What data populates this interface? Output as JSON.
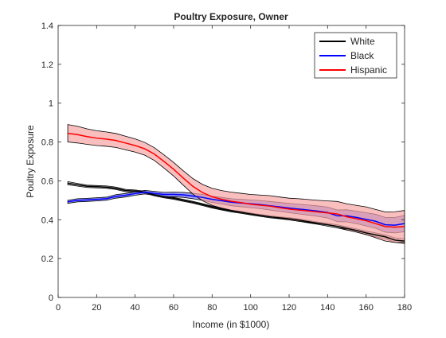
{
  "chart_data": {
    "type": "line",
    "title": "Poultry Exposure, Owner",
    "xlabel": "Income (in $1000)",
    "ylabel": "Poultry Exposure",
    "xlim": [
      0,
      180
    ],
    "ylim": [
      0,
      1.4
    ],
    "xticks": [
      "0",
      "20",
      "40",
      "60",
      "80",
      "100",
      "120",
      "140",
      "160",
      "180"
    ],
    "yticks": [
      "0",
      "0.2",
      "0.4",
      "0.6",
      "0.8",
      "1",
      "1.2",
      "1.4"
    ],
    "grid": false,
    "legend_position": "top-right",
    "series": [
      {
        "name": "White",
        "color": "#000000",
        "band_color": "#bdbdbd",
        "x": [
          5,
          10,
          15,
          20,
          25,
          30,
          35,
          40,
          45,
          50,
          55,
          60,
          65,
          70,
          75,
          80,
          85,
          90,
          95,
          100,
          105,
          110,
          115,
          120,
          125,
          130,
          135,
          140,
          145,
          150,
          155,
          160,
          165,
          170,
          175,
          180
        ],
        "y": [
          0.588,
          0.58,
          0.572,
          0.57,
          0.568,
          0.562,
          0.55,
          0.548,
          0.542,
          0.528,
          0.518,
          0.51,
          0.5,
          0.49,
          0.478,
          0.465,
          0.455,
          0.445,
          0.438,
          0.43,
          0.422,
          0.415,
          0.41,
          0.405,
          0.398,
          0.39,
          0.382,
          0.374,
          0.366,
          0.355,
          0.345,
          0.332,
          0.322,
          0.312,
          0.295,
          0.29
        ],
        "lower": [
          0.58,
          0.573,
          0.566,
          0.564,
          0.562,
          0.556,
          0.544,
          0.543,
          0.537,
          0.523,
          0.513,
          0.505,
          0.495,
          0.485,
          0.473,
          0.46,
          0.45,
          0.44,
          0.433,
          0.425,
          0.417,
          0.41,
          0.405,
          0.399,
          0.392,
          0.384,
          0.376,
          0.367,
          0.358,
          0.347,
          0.337,
          0.323,
          0.312,
          0.302,
          0.283,
          0.278
        ],
        "upper": [
          0.596,
          0.587,
          0.578,
          0.576,
          0.574,
          0.568,
          0.556,
          0.553,
          0.547,
          0.533,
          0.523,
          0.515,
          0.505,
          0.495,
          0.483,
          0.47,
          0.46,
          0.45,
          0.443,
          0.435,
          0.427,
          0.42,
          0.415,
          0.411,
          0.404,
          0.396,
          0.388,
          0.381,
          0.374,
          0.363,
          0.353,
          0.341,
          0.332,
          0.322,
          0.307,
          0.302
        ]
      },
      {
        "name": "Black",
        "color": "#0000ff",
        "band_color": "#7070e8",
        "x": [
          5,
          10,
          15,
          20,
          25,
          30,
          35,
          40,
          45,
          50,
          55,
          60,
          65,
          70,
          75,
          80,
          85,
          90,
          95,
          100,
          105,
          110,
          115,
          120,
          125,
          130,
          135,
          140,
          145,
          150,
          155,
          160,
          165,
          170,
          175,
          180
        ],
        "y": [
          0.492,
          0.5,
          0.502,
          0.505,
          0.508,
          0.52,
          0.526,
          0.535,
          0.542,
          0.536,
          0.53,
          0.53,
          0.528,
          0.522,
          0.515,
          0.505,
          0.498,
          0.49,
          0.486,
          0.482,
          0.478,
          0.472,
          0.466,
          0.46,
          0.455,
          0.45,
          0.444,
          0.437,
          0.42,
          0.42,
          0.412,
          0.402,
          0.392,
          0.374,
          0.372,
          0.38
        ],
        "lower": [
          0.484,
          0.492,
          0.494,
          0.497,
          0.5,
          0.511,
          0.517,
          0.526,
          0.533,
          0.526,
          0.519,
          0.518,
          0.515,
          0.508,
          0.5,
          0.489,
          0.481,
          0.472,
          0.467,
          0.462,
          0.457,
          0.45,
          0.443,
          0.436,
          0.43,
          0.424,
          0.417,
          0.409,
          0.39,
          0.389,
          0.38,
          0.368,
          0.356,
          0.336,
          0.332,
          0.338
        ],
        "upper": [
          0.5,
          0.508,
          0.51,
          0.513,
          0.516,
          0.529,
          0.535,
          0.544,
          0.551,
          0.546,
          0.541,
          0.542,
          0.541,
          0.536,
          0.53,
          0.521,
          0.515,
          0.508,
          0.505,
          0.502,
          0.499,
          0.494,
          0.489,
          0.484,
          0.48,
          0.476,
          0.471,
          0.465,
          0.45,
          0.451,
          0.444,
          0.436,
          0.428,
          0.412,
          0.412,
          0.422
        ]
      },
      {
        "name": "Hispanic",
        "color": "#ff0000",
        "band_color": "#f7a3a3",
        "x": [
          5,
          10,
          15,
          20,
          25,
          30,
          35,
          40,
          45,
          50,
          55,
          60,
          65,
          70,
          75,
          80,
          85,
          90,
          95,
          100,
          105,
          110,
          115,
          120,
          125,
          130,
          135,
          140,
          145,
          150,
          155,
          160,
          165,
          170,
          175,
          180
        ],
        "y": [
          0.845,
          0.838,
          0.828,
          0.82,
          0.815,
          0.808,
          0.795,
          0.782,
          0.765,
          0.738,
          0.7,
          0.66,
          0.615,
          0.572,
          0.54,
          0.518,
          0.505,
          0.495,
          0.488,
          0.48,
          0.475,
          0.47,
          0.462,
          0.455,
          0.45,
          0.445,
          0.44,
          0.435,
          0.43,
          0.415,
          0.405,
          0.395,
          0.38,
          0.365,
          0.362,
          0.365
        ],
        "lower": [
          0.8,
          0.795,
          0.788,
          0.782,
          0.778,
          0.772,
          0.76,
          0.748,
          0.732,
          0.705,
          0.666,
          0.625,
          0.578,
          0.532,
          0.498,
          0.474,
          0.46,
          0.448,
          0.44,
          0.43,
          0.423,
          0.416,
          0.407,
          0.399,
          0.392,
          0.386,
          0.38,
          0.373,
          0.366,
          0.348,
          0.336,
          0.324,
          0.307,
          0.29,
          0.283,
          0.282
        ],
        "upper": [
          0.89,
          0.881,
          0.868,
          0.858,
          0.852,
          0.844,
          0.83,
          0.816,
          0.798,
          0.771,
          0.734,
          0.695,
          0.652,
          0.612,
          0.582,
          0.562,
          0.55,
          0.542,
          0.536,
          0.53,
          0.527,
          0.524,
          0.517,
          0.511,
          0.508,
          0.504,
          0.5,
          0.497,
          0.494,
          0.482,
          0.474,
          0.466,
          0.453,
          0.44,
          0.441,
          0.448
        ]
      }
    ]
  }
}
